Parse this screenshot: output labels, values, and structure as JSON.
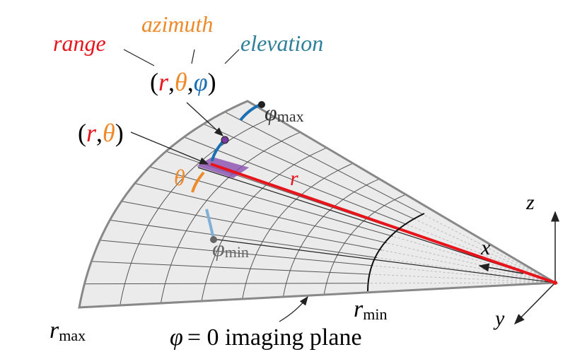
{
  "labels": {
    "range": "range",
    "azimuth": "azimuth",
    "elevation": "elevation"
  },
  "point_3d": [
    "(",
    "r",
    ",",
    "θ",
    ",",
    "φ",
    ")"
  ],
  "point_2d": [
    "(",
    "r",
    ",",
    "θ",
    ")"
  ],
  "phi_max": {
    "symbol": "φ",
    "subscript": "max"
  },
  "phi_min": {
    "symbol": "φ",
    "subscript": "min"
  },
  "theta": "θ",
  "r": "r",
  "axes": {
    "x": "x",
    "y": "y",
    "z": "z"
  },
  "r_min": {
    "symbol": "r",
    "subscript": "min"
  },
  "r_max": {
    "symbol": "r",
    "subscript": "max"
  },
  "plane": {
    "symbol": "φ",
    "text": "= 0 imaging plane"
  }
}
